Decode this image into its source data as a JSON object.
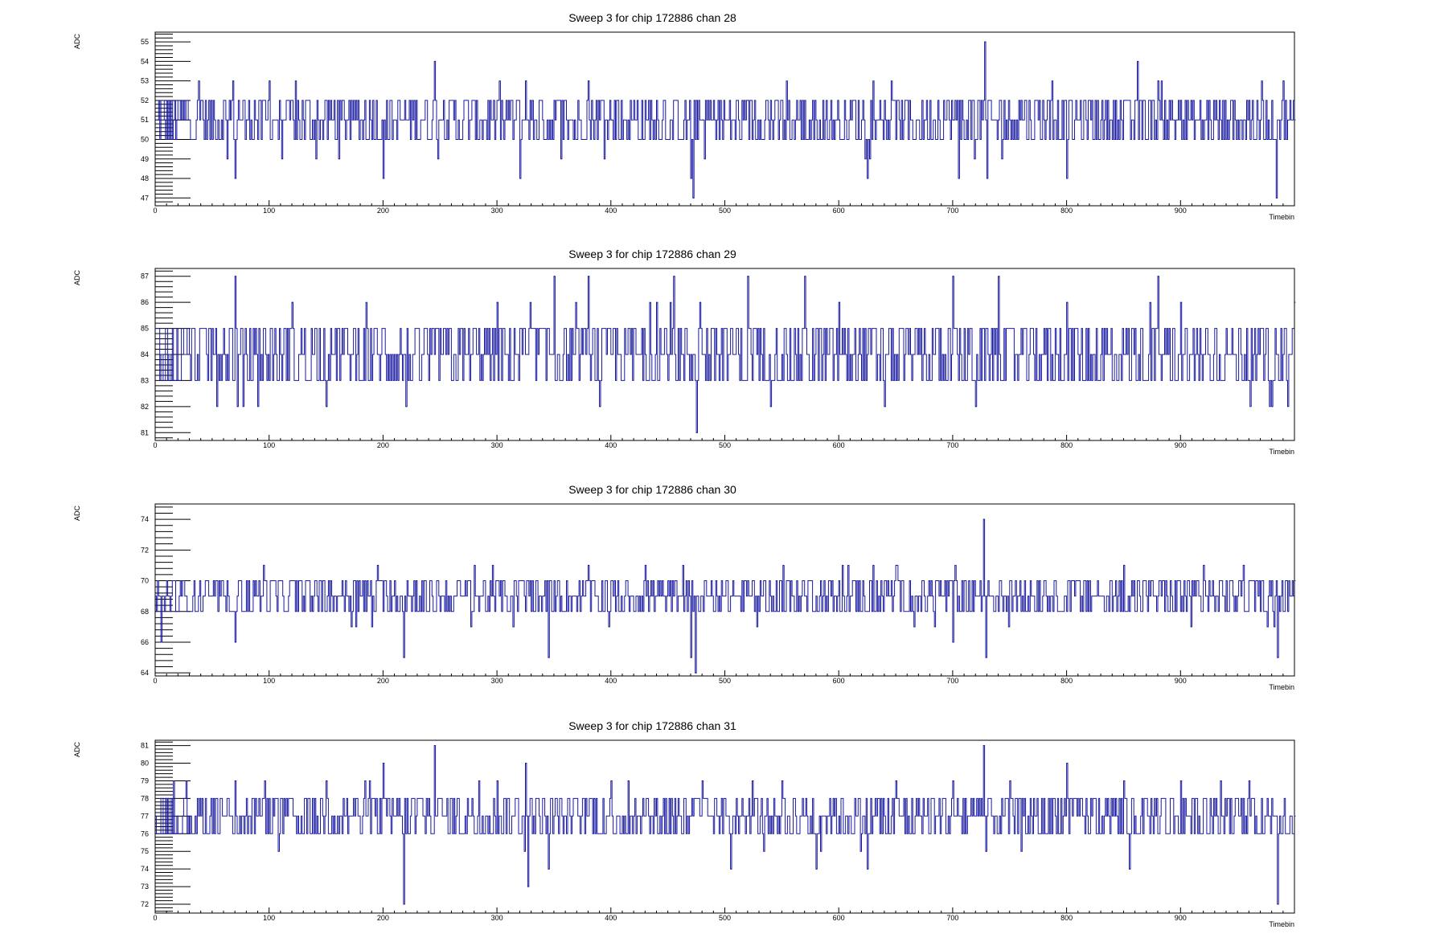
{
  "chart_data": [
    {
      "type": "line",
      "title": "Sweep 3 for chip 172886 chan 28",
      "xlabel": "Timebin",
      "ylabel": "ADC",
      "xlim": [
        0,
        1000
      ],
      "ylim": [
        46.6,
        55.5
      ],
      "xticks": [
        0,
        100,
        200,
        300,
        400,
        500,
        600,
        700,
        800,
        900
      ],
      "yticks": [
        47,
        48,
        49,
        50,
        51,
        52,
        53,
        54,
        55
      ],
      "baseline": 51,
      "color": "#1a1aa0",
      "series": [
        {
          "x": [
            0,
            15,
            40,
            68,
            70,
            80,
            100,
            130,
            200,
            245,
            250,
            300,
            320,
            325,
            380,
            400,
            405,
            470,
            472,
            480,
            520,
            600,
            625,
            640,
            700,
            705,
            728,
            730,
            760,
            800,
            850,
            862,
            880,
            900,
            960,
            984,
            990,
            1000
          ],
          "y": [
            51,
            50,
            52,
            53,
            48,
            51,
            53,
            51,
            48,
            54,
            51,
            52,
            48,
            53,
            53,
            51,
            52,
            48,
            47,
            51,
            52,
            51,
            48,
            52,
            51,
            48,
            55,
            48,
            52,
            48,
            52,
            54,
            53,
            52,
            52,
            47,
            53,
            51
          ]
        }
      ]
    },
    {
      "type": "line",
      "title": "Sweep 3 for chip 172886 chan 29",
      "xlabel": "Timebin",
      "ylabel": "ADC",
      "xlim": [
        0,
        1000
      ],
      "ylim": [
        80.7,
        87.3
      ],
      "xticks": [
        0,
        100,
        200,
        300,
        400,
        500,
        600,
        700,
        800,
        900
      ],
      "yticks": [
        81,
        82,
        83,
        84,
        85,
        86,
        87
      ],
      "baseline": 84,
      "color": "#1a1aa0",
      "series": [
        {
          "x": [
            0,
            20,
            70,
            72,
            120,
            150,
            220,
            300,
            350,
            380,
            390,
            440,
            455,
            475,
            478,
            520,
            540,
            570,
            600,
            640,
            700,
            720,
            740,
            800,
            880,
            900,
            980,
            1000
          ],
          "y": [
            85,
            83,
            87,
            82,
            86,
            82,
            82,
            86,
            87,
            87,
            82,
            86,
            87,
            81,
            86,
            87,
            82,
            87,
            86,
            82,
            87,
            82,
            87,
            86,
            87,
            86,
            82,
            86
          ]
        }
      ]
    },
    {
      "type": "line",
      "title": "Sweep 3 for chip 172886 chan 30",
      "xlabel": "Timebin",
      "ylabel": "ADC",
      "xlim": [
        0,
        1000
      ],
      "ylim": [
        63.8,
        75.0
      ],
      "xticks": [
        0,
        100,
        200,
        300,
        400,
        500,
        600,
        700,
        800,
        900
      ],
      "yticks": [
        64,
        66,
        68,
        70,
        72,
        74
      ],
      "baseline": 69,
      "color": "#1a1aa0",
      "series": [
        {
          "x": [
            0,
            5,
            70,
            95,
            195,
            218,
            280,
            320,
            345,
            380,
            430,
            470,
            474,
            520,
            600,
            630,
            650,
            700,
            727,
            729,
            780,
            820,
            850,
            920,
            955,
            985,
            1000
          ],
          "y": [
            69,
            66,
            66,
            71,
            71,
            65,
            71,
            70,
            65,
            71,
            71,
            65,
            64,
            70,
            70,
            71,
            71,
            66,
            74,
            65,
            70,
            70,
            71,
            71,
            71,
            65,
            70
          ]
        }
      ]
    },
    {
      "type": "line",
      "title": "Sweep 3 for chip 172886 chan 31",
      "xlabel": "Timebin",
      "ylabel": "ADC",
      "xlim": [
        0,
        1000
      ],
      "ylim": [
        71.5,
        81.3
      ],
      "xticks": [
        0,
        100,
        200,
        300,
        400,
        500,
        600,
        700,
        800,
        900
      ],
      "yticks": [
        72,
        73,
        74,
        75,
        76,
        77,
        78,
        79,
        80,
        81
      ],
      "baseline": 77,
      "color": "#1a1aa0",
      "series": [
        {
          "x": [
            0,
            70,
            150,
            200,
            218,
            245,
            300,
            325,
            327,
            345,
            400,
            480,
            505,
            550,
            580,
            625,
            650,
            700,
            727,
            729,
            750,
            800,
            850,
            855,
            900,
            960,
            985,
            1000
          ],
          "y": [
            77,
            79,
            79,
            80,
            72,
            81,
            79,
            80,
            73,
            74,
            79,
            79,
            74,
            79,
            74,
            74,
            79,
            79,
            81,
            75,
            79,
            80,
            79,
            74,
            79,
            79,
            72,
            77
          ]
        }
      ]
    }
  ]
}
